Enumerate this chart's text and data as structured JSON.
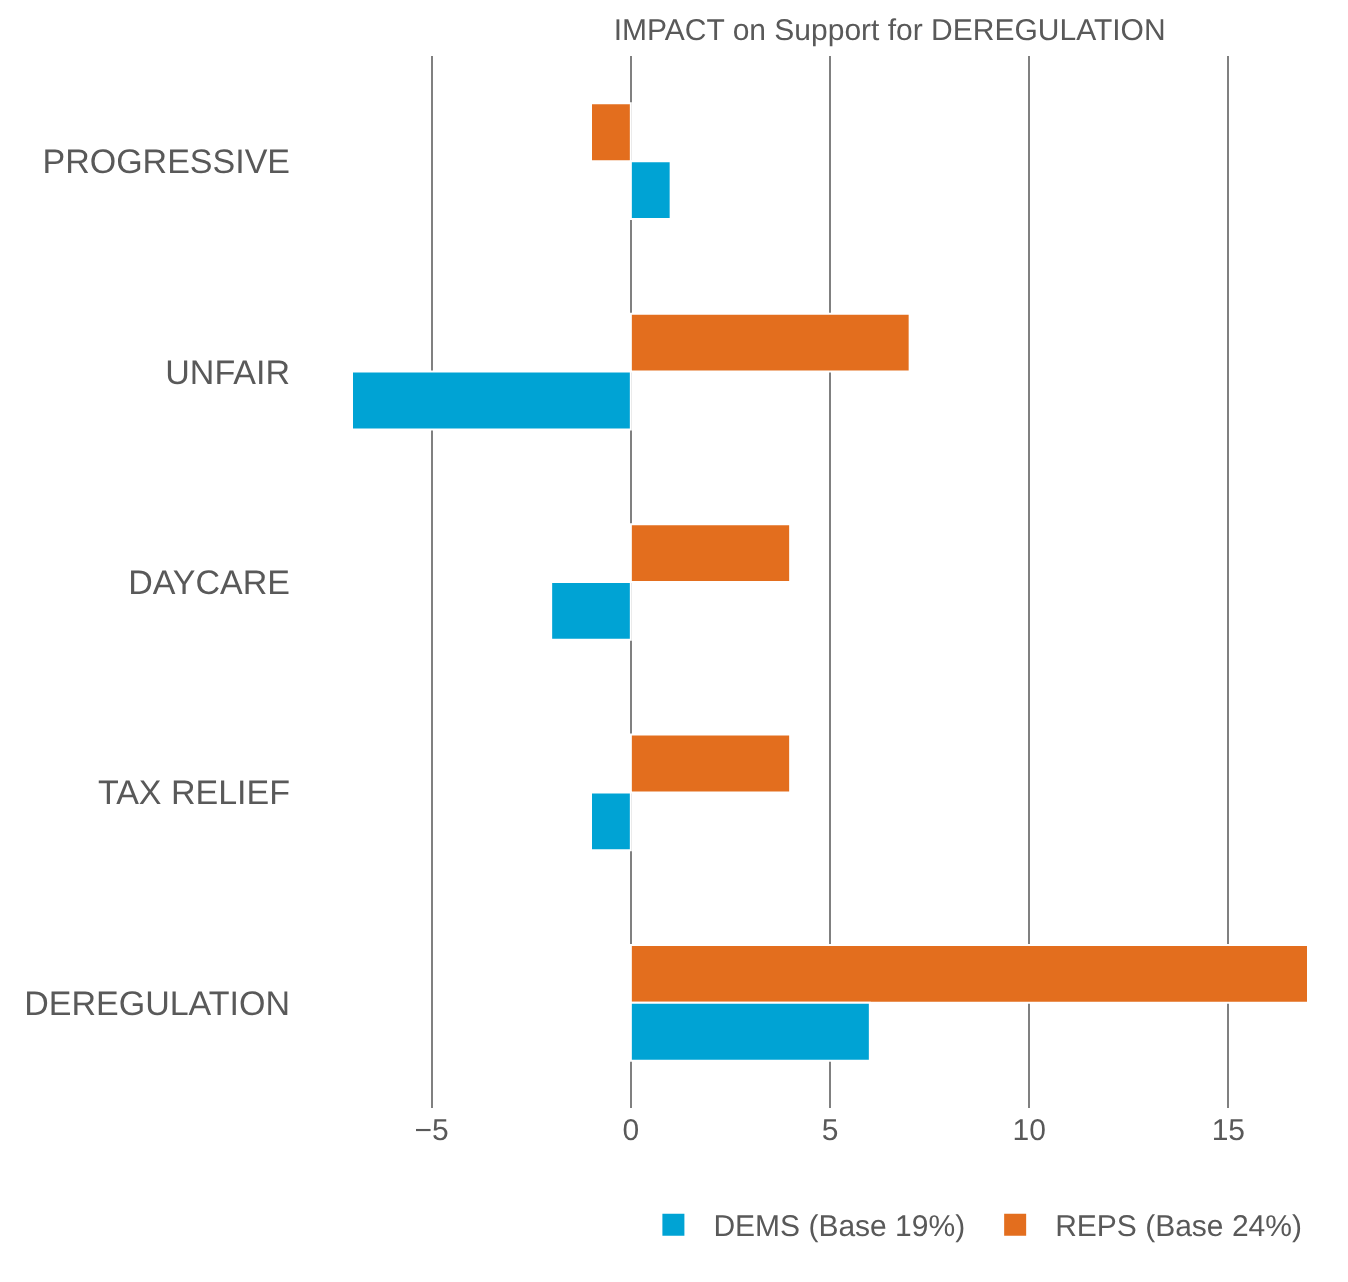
{
  "chart_data": {
    "type": "bar",
    "orientation": "horizontal",
    "title": "IMPACT on Support for DEREGULATION",
    "categories": [
      "PROGRESSIVE",
      "UNFAIR",
      "DAYCARE",
      "TAX RELIEF",
      "DEREGULATION"
    ],
    "series": [
      {
        "name": "DEMS (Base 19%)",
        "color": "#00a3d4",
        "values": [
          1,
          -7,
          -2,
          -1,
          6
        ]
      },
      {
        "name": "REPS (Base 24%)",
        "color": "#e36e1e",
        "values": [
          -1,
          7,
          4,
          4,
          17
        ]
      }
    ],
    "xlim": [
      -7,
      17
    ],
    "xticks": [
      {
        "value": -5,
        "label": "−5"
      },
      0,
      5,
      10,
      15
    ],
    "grid": "x",
    "legend": "bottom"
  }
}
